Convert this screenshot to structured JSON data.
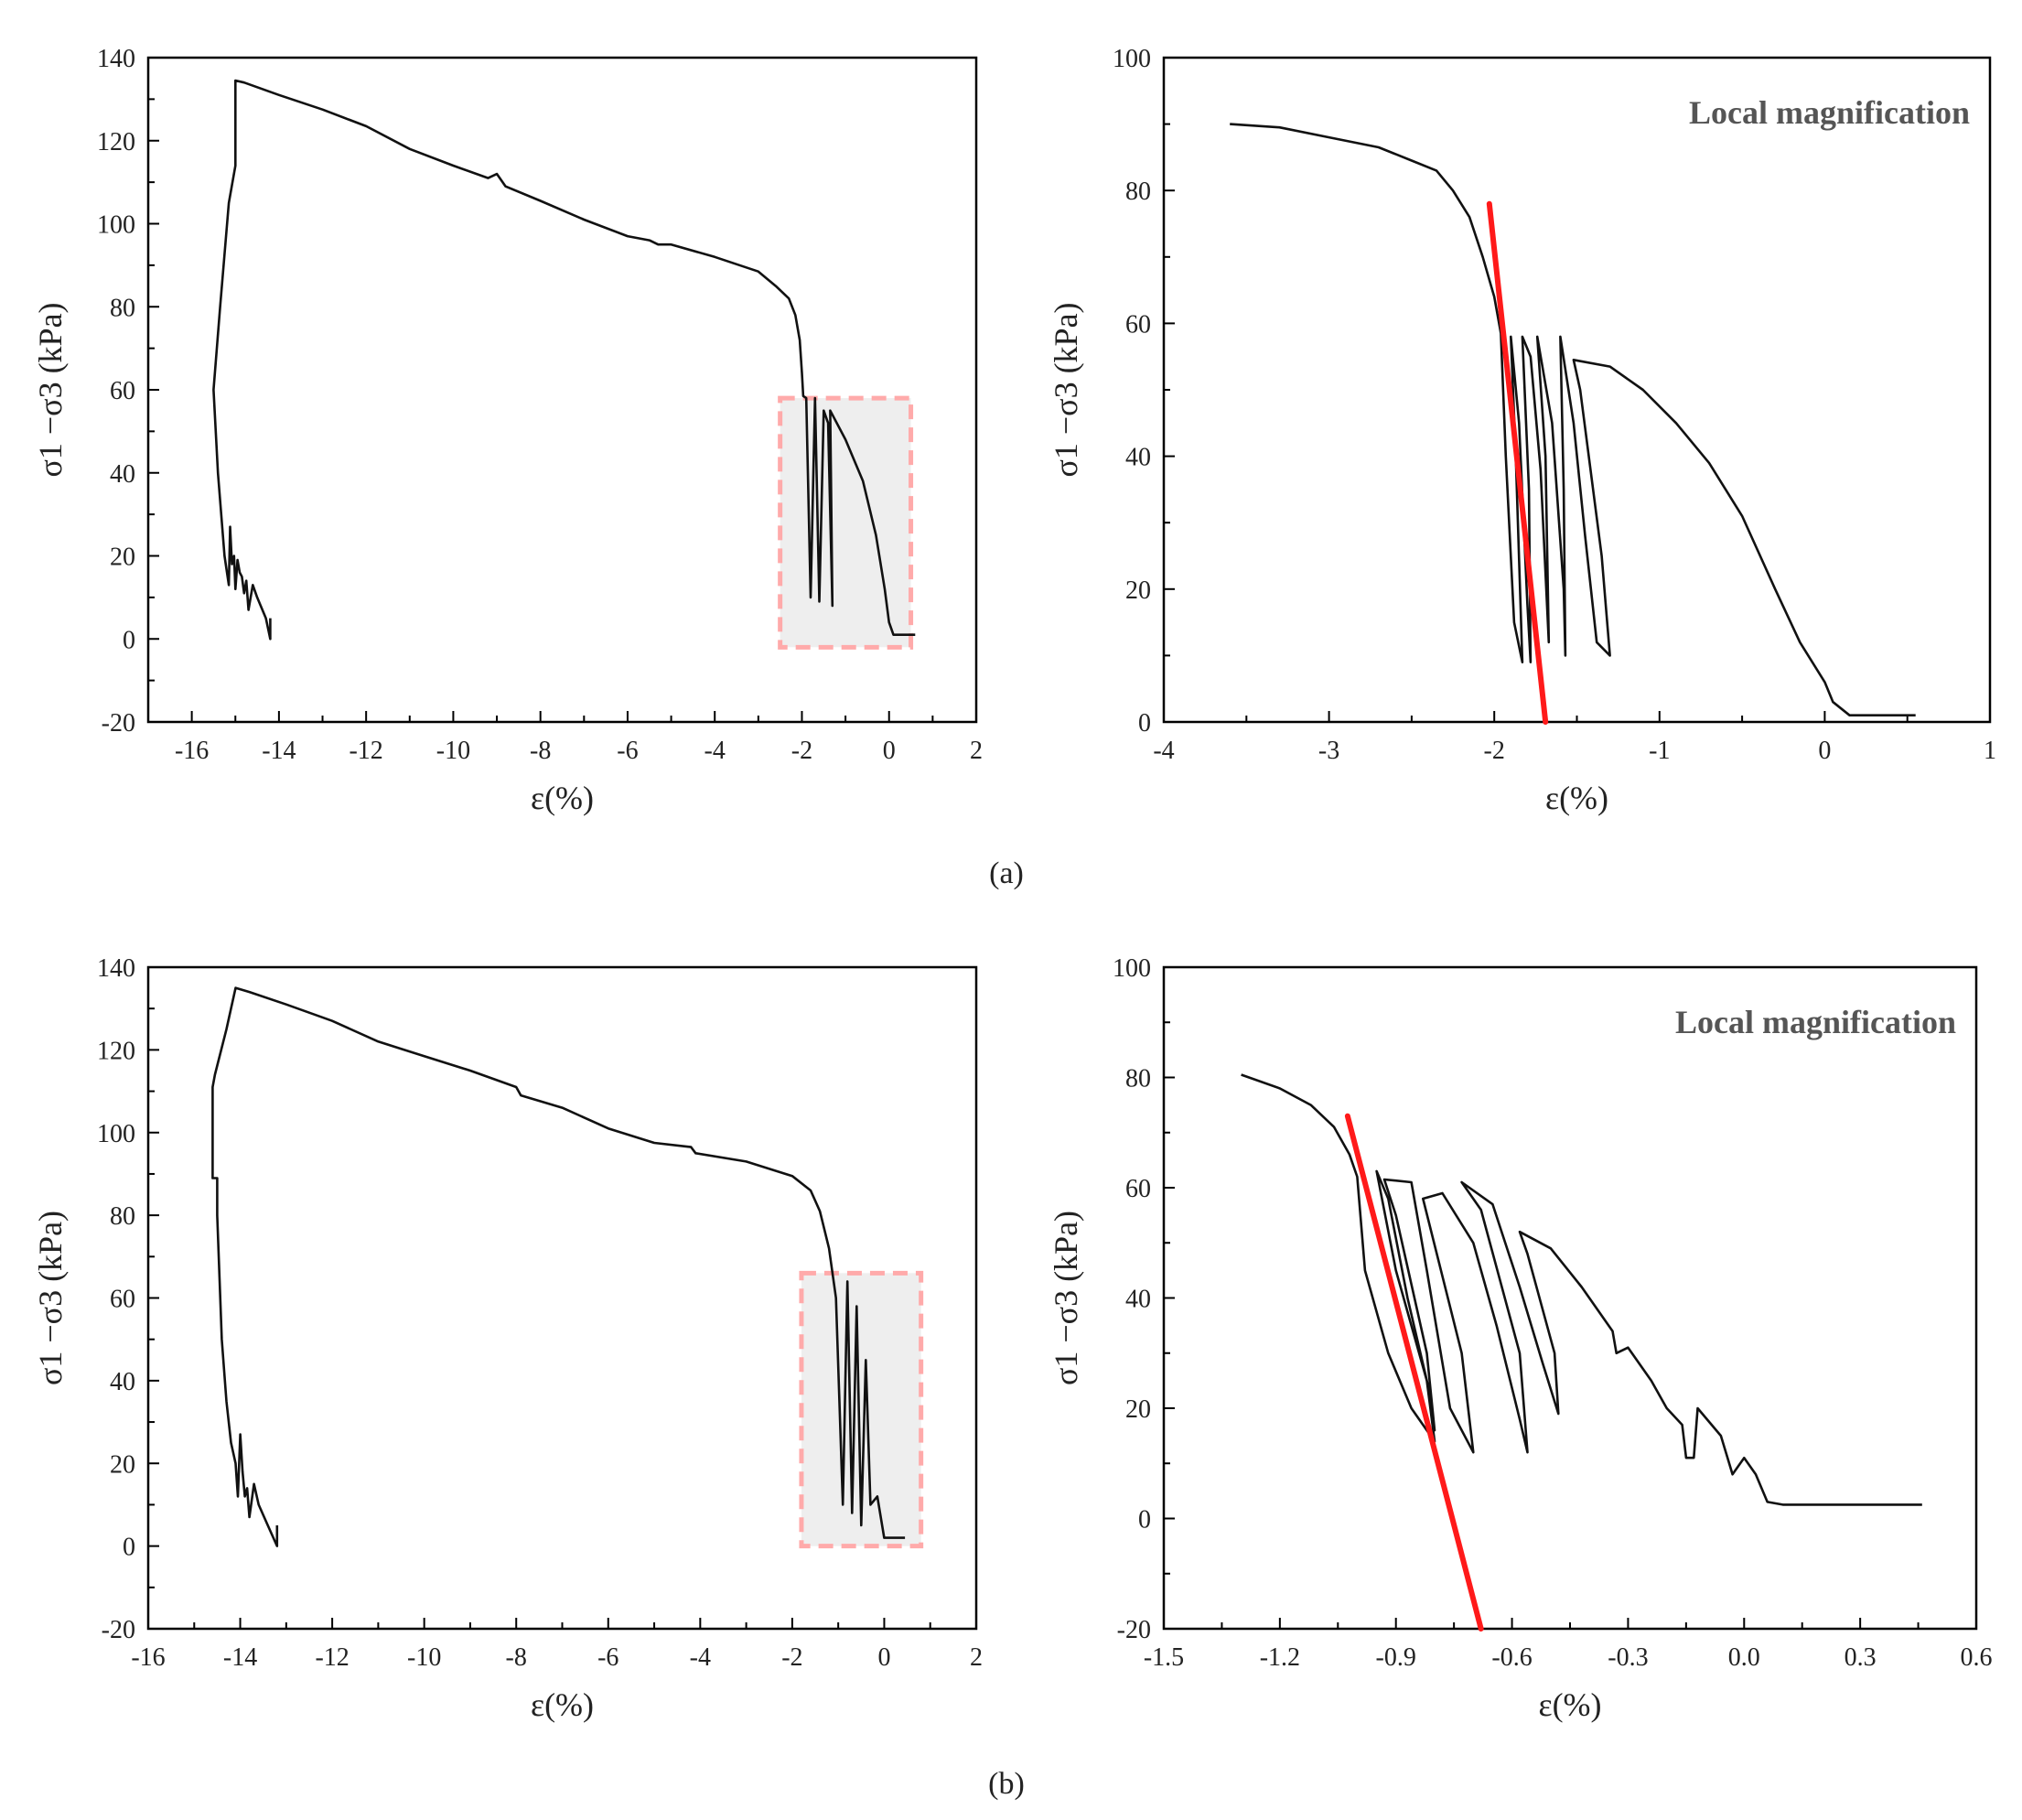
{
  "figure_labels": {
    "a": "(a)",
    "b": "(b)"
  },
  "colors": {
    "curve": "#111111",
    "fit_line": "#ff1a1a",
    "zoom_fill": "#eeeeee",
    "zoom_border": "#ffaaaa"
  },
  "chart_data": [
    {
      "id": "a-full",
      "type": "line",
      "xlabel": "ε(%)",
      "ylabel": "σ1 −σ3 (kPa)",
      "xlim": [
        -17,
        2
      ],
      "ylim": [
        -20,
        140
      ],
      "xticks": [
        -16,
        -14,
        -12,
        -10,
        -8,
        -6,
        -4,
        -2,
        0,
        2
      ],
      "yticks": [
        -20,
        0,
        20,
        40,
        60,
        80,
        100,
        120,
        140
      ],
      "zoom_box": {
        "x": [
          -2.5,
          0.5
        ],
        "y": [
          -2,
          58
        ]
      },
      "series": [
        {
          "name": "stress-strain curve",
          "points": [
            [
              -14.2,
              5
            ],
            [
              -14.2,
              0
            ],
            [
              -14.3,
              5
            ],
            [
              -14.5,
              10
            ],
            [
              -14.6,
              13
            ],
            [
              -14.7,
              7
            ],
            [
              -14.75,
              14
            ],
            [
              -14.8,
              11
            ],
            [
              -14.85,
              15
            ],
            [
              -14.9,
              16
            ],
            [
              -14.95,
              19
            ],
            [
              -15.0,
              12
            ],
            [
              -15.03,
              20
            ],
            [
              -15.08,
              18
            ],
            [
              -15.12,
              27
            ],
            [
              -15.15,
              13
            ],
            [
              -15.25,
              20
            ],
            [
              -15.4,
              40
            ],
            [
              -15.5,
              60
            ],
            [
              -15.35,
              80
            ],
            [
              -15.15,
              105
            ],
            [
              -15.0,
              114
            ],
            [
              -15.0,
              126
            ],
            [
              -15.0,
              134.5
            ],
            [
              -14.8,
              134
            ],
            [
              -14,
              131
            ],
            [
              -13,
              127.5
            ],
            [
              -12,
              123.5
            ],
            [
              -11,
              118
            ],
            [
              -10,
              114
            ],
            [
              -9.2,
              111
            ],
            [
              -9,
              112
            ],
            [
              -8.8,
              109
            ],
            [
              -8,
              105.5
            ],
            [
              -7,
              101
            ],
            [
              -6,
              97
            ],
            [
              -5.5,
              96
            ],
            [
              -5.3,
              95
            ],
            [
              -5,
              95
            ],
            [
              -4,
              92
            ],
            [
              -3,
              88.5
            ],
            [
              -2.6,
              85
            ],
            [
              -2.3,
              82
            ],
            [
              -2.15,
              78
            ],
            [
              -2.05,
              72
            ],
            [
              -2.0,
              64
            ],
            [
              -1.97,
              58.5
            ],
            [
              -1.9,
              58
            ],
            [
              -1.8,
              10
            ],
            [
              -1.7,
              58
            ],
            [
              -1.6,
              9
            ],
            [
              -1.5,
              55
            ],
            [
              -1.4,
              52
            ],
            [
              -1.3,
              8
            ],
            [
              -1.35,
              55
            ],
            [
              -1.0,
              48
            ],
            [
              -0.6,
              38
            ],
            [
              -0.3,
              25
            ],
            [
              -0.1,
              12
            ],
            [
              0.0,
              4
            ],
            [
              0.1,
              1
            ],
            [
              0.6,
              1
            ]
          ]
        }
      ]
    },
    {
      "id": "a-zoom",
      "type": "line",
      "xlabel": "ε(%)",
      "ylabel": "σ1 −σ3 (kPa)",
      "annotation": "Local magnification",
      "xlim": [
        -4,
        1
      ],
      "ylim": [
        0,
        100
      ],
      "xticks": [
        -4,
        -3,
        -2,
        -1,
        0,
        1
      ],
      "yticks": [
        0,
        20,
        40,
        60,
        80,
        100
      ],
      "series": [
        {
          "name": "stress-strain curve",
          "points": [
            [
              -3.6,
              90
            ],
            [
              -3.3,
              89.5
            ],
            [
              -3.0,
              88
            ],
            [
              -2.7,
              86.5
            ],
            [
              -2.5,
              84.5
            ],
            [
              -2.35,
              83
            ],
            [
              -2.25,
              80
            ],
            [
              -2.15,
              76
            ],
            [
              -2.07,
              70
            ],
            [
              -2.0,
              64
            ],
            [
              -1.96,
              58.5
            ],
            [
              -1.93,
              40
            ],
            [
              -1.88,
              15
            ],
            [
              -1.83,
              9
            ],
            [
              -1.87,
              40
            ],
            [
              -1.9,
              58
            ],
            [
              -1.85,
              45
            ],
            [
              -1.8,
              18
            ],
            [
              -1.78,
              9
            ],
            [
              -1.79,
              35
            ],
            [
              -1.83,
              58
            ],
            [
              -1.78,
              55
            ],
            [
              -1.72,
              38
            ],
            [
              -1.67,
              12
            ],
            [
              -1.69,
              40
            ],
            [
              -1.74,
              58
            ],
            [
              -1.65,
              45
            ],
            [
              -1.58,
              20
            ],
            [
              -1.57,
              10
            ],
            [
              -1.58,
              35
            ],
            [
              -1.6,
              58
            ],
            [
              -1.52,
              45
            ],
            [
              -1.45,
              28
            ],
            [
              -1.38,
              12
            ],
            [
              -1.3,
              10
            ],
            [
              -1.35,
              25
            ],
            [
              -1.48,
              50
            ],
            [
              -1.52,
              54.5
            ],
            [
              -1.3,
              53.5
            ],
            [
              -1.1,
              50
            ],
            [
              -0.9,
              45
            ],
            [
              -0.7,
              39
            ],
            [
              -0.5,
              31
            ],
            [
              -0.3,
              20
            ],
            [
              -0.15,
              12
            ],
            [
              0.0,
              6
            ],
            [
              0.05,
              3
            ],
            [
              0.15,
              1
            ],
            [
              0.55,
              1
            ]
          ]
        },
        {
          "name": "fit line",
          "points": [
            [
              -2.03,
              78
            ],
            [
              -1.69,
              0
            ]
          ]
        }
      ]
    },
    {
      "id": "b-full",
      "type": "line",
      "xlabel": "ε(%)",
      "ylabel": "σ1 −σ3 (kPa)",
      "xlim": [
        -16,
        2
      ],
      "ylim": [
        -20,
        140
      ],
      "xticks": [
        -16,
        -14,
        -12,
        -10,
        -8,
        -6,
        -4,
        -2,
        0,
        2
      ],
      "yticks": [
        -20,
        0,
        20,
        40,
        60,
        80,
        100,
        120,
        140
      ],
      "zoom_box": {
        "x": [
          -1.8,
          0.8
        ],
        "y": [
          0,
          66
        ]
      },
      "series": [
        {
          "name": "stress-strain curve",
          "points": [
            [
              -13.2,
              5
            ],
            [
              -13.2,
              0
            ],
            [
              -13.4,
              5
            ],
            [
              -13.6,
              10
            ],
            [
              -13.7,
              15
            ],
            [
              -13.8,
              7
            ],
            [
              -13.85,
              14
            ],
            [
              -13.9,
              12
            ],
            [
              -13.95,
              18
            ],
            [
              -14.0,
              27
            ],
            [
              -14.05,
              12
            ],
            [
              -14.1,
              20
            ],
            [
              -14.2,
              25
            ],
            [
              -14.3,
              35
            ],
            [
              -14.4,
              50
            ],
            [
              -14.45,
              65
            ],
            [
              -14.5,
              80
            ],
            [
              -14.5,
              89
            ],
            [
              -14.6,
              89
            ],
            [
              -14.6,
              111
            ],
            [
              -14.55,
              114
            ],
            [
              -14.3,
              125
            ],
            [
              -14.1,
              135
            ],
            [
              -13.8,
              134
            ],
            [
              -13,
              131
            ],
            [
              -12,
              127
            ],
            [
              -11,
              122
            ],
            [
              -10,
              118.5
            ],
            [
              -9,
              115
            ],
            [
              -8,
              111
            ],
            [
              -7.9,
              109
            ],
            [
              -7,
              106
            ],
            [
              -6,
              101
            ],
            [
              -5,
              97.5
            ],
            [
              -4.2,
              96.5
            ],
            [
              -4.1,
              95
            ],
            [
              -3,
              93
            ],
            [
              -2,
              89.5
            ],
            [
              -1.6,
              86
            ],
            [
              -1.4,
              81
            ],
            [
              -1.2,
              72
            ],
            [
              -1.05,
              60
            ],
            [
              -0.9,
              10
            ],
            [
              -0.8,
              64
            ],
            [
              -0.7,
              8
            ],
            [
              -0.6,
              58
            ],
            [
              -0.5,
              5
            ],
            [
              -0.4,
              45
            ],
            [
              -0.3,
              10
            ],
            [
              -0.15,
              12
            ],
            [
              0.0,
              2
            ],
            [
              0.45,
              2
            ]
          ]
        }
      ]
    },
    {
      "id": "b-zoom",
      "type": "line",
      "xlabel": "ε(%)",
      "ylabel": "σ1 −σ3 (kPa)",
      "annotation": "Local magnification",
      "xlim": [
        -1.5,
        0.6
      ],
      "ylim": [
        -20,
        100
      ],
      "xticks": [
        -1.5,
        -1.2,
        -0.9,
        -0.6,
        -0.3,
        0.0,
        0.3,
        0.6
      ],
      "xtick_labels": [
        "-1.5",
        "-1.2",
        "-0.9",
        "-0.6",
        "-0.3",
        "0.0",
        "0.3",
        "0.6"
      ],
      "yticks": [
        -20,
        0,
        20,
        40,
        60,
        80,
        100
      ],
      "series": [
        {
          "name": "stress-strain curve",
          "points": [
            [
              -1.3,
              80.5
            ],
            [
              -1.2,
              78
            ],
            [
              -1.12,
              75
            ],
            [
              -1.06,
              71
            ],
            [
              -1.02,
              66
            ],
            [
              -1.0,
              62
            ],
            [
              -0.98,
              45
            ],
            [
              -0.92,
              30
            ],
            [
              -0.86,
              20
            ],
            [
              -0.8,
              14
            ],
            [
              -0.82,
              25
            ],
            [
              -0.9,
              45
            ],
            [
              -0.95,
              63
            ],
            [
              -0.92,
              58
            ],
            [
              -0.87,
              40
            ],
            [
              -0.81,
              22
            ],
            [
              -0.8,
              16
            ],
            [
              -0.82,
              30
            ],
            [
              -0.9,
              55
            ],
            [
              -0.93,
              61.5
            ],
            [
              -0.86,
              61
            ],
            [
              -0.82,
              45
            ],
            [
              -0.76,
              20
            ],
            [
              -0.7,
              12
            ],
            [
              -0.73,
              30
            ],
            [
              -0.83,
              58
            ],
            [
              -0.78,
              59
            ],
            [
              -0.7,
              50
            ],
            [
              -0.64,
              35
            ],
            [
              -0.58,
              18
            ],
            [
              -0.56,
              12
            ],
            [
              -0.58,
              30
            ],
            [
              -0.68,
              56
            ],
            [
              -0.73,
              61
            ],
            [
              -0.65,
              57
            ],
            [
              -0.58,
              42
            ],
            [
              -0.52,
              28
            ],
            [
              -0.48,
              19
            ],
            [
              -0.49,
              30
            ],
            [
              -0.56,
              48
            ],
            [
              -0.58,
              52
            ],
            [
              -0.5,
              49
            ],
            [
              -0.42,
              42
            ],
            [
              -0.34,
              34
            ],
            [
              -0.33,
              30
            ],
            [
              -0.3,
              31
            ],
            [
              -0.24,
              25
            ],
            [
              -0.2,
              20
            ],
            [
              -0.16,
              17
            ],
            [
              -0.15,
              11
            ],
            [
              -0.13,
              11
            ],
            [
              -0.12,
              20
            ],
            [
              -0.06,
              15
            ],
            [
              -0.03,
              8
            ],
            [
              0.0,
              11
            ],
            [
              0.03,
              8
            ],
            [
              0.06,
              3
            ],
            [
              0.1,
              2.5
            ],
            [
              0.46,
              2.5
            ]
          ]
        },
        {
          "name": "fit line",
          "points": [
            [
              -1.025,
              73
            ],
            [
              -0.68,
              -20
            ]
          ]
        }
      ]
    }
  ]
}
